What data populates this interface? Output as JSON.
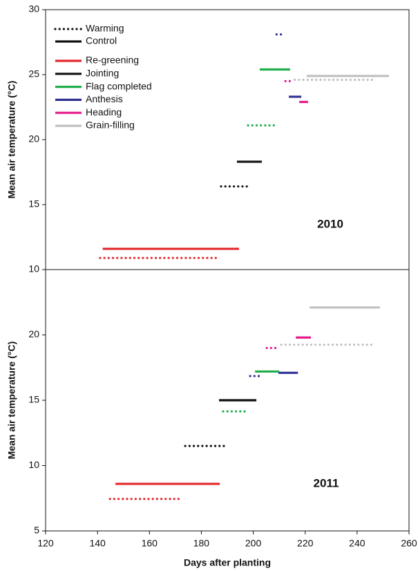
{
  "chart_data": [
    {
      "type": "segment",
      "ylabel": "Mean air temperature (°C)",
      "annotation": "2010",
      "xlim": [
        120,
        260
      ],
      "ylim": [
        10,
        30
      ],
      "yticks": [
        10,
        15,
        20,
        25,
        30
      ],
      "line_styles": [
        {
          "name": "Warming",
          "dash": true
        },
        {
          "name": "Control",
          "dash": false
        }
      ],
      "series": [
        {
          "name": "Re-greening",
          "color": "#e3262b",
          "control": {
            "x": [
              142,
              194.5
            ],
            "y": 11.6
          },
          "warming": {
            "x": [
              141,
              187
            ],
            "y": 10.9
          }
        },
        {
          "name": "Jointing",
          "color": "#111111",
          "control": {
            "x": [
              193.7,
              203.3
            ],
            "y": 18.3
          },
          "warming": {
            "x": [
              187.6,
              198.8
            ],
            "y": 16.4
          }
        },
        {
          "name": "Flag completed",
          "color": "#1fae4b",
          "control": {
            "x": [
              202.5,
              214.2
            ],
            "y": 25.4
          },
          "warming": {
            "x": [
              198,
              209.2
            ],
            "y": 21.1
          }
        },
        {
          "name": "Anthesis",
          "color": "#2e3192",
          "control": {
            "x": [
              213.7,
              218.5
            ],
            "y": 23.3
          },
          "warming": {
            "x": [
              209,
              211.6
            ],
            "y": 28.1
          }
        },
        {
          "name": "Heading",
          "color": "#e6198a",
          "control": {
            "x": [
              217.7,
              221.1
            ],
            "y": 22.9
          },
          "warming": {
            "x": [
              212.4,
              215.3
            ],
            "y": 24.5
          }
        },
        {
          "name": "Grain-filling",
          "color": "#c0c0c0",
          "control": {
            "x": [
              220.6,
              252.3
            ],
            "y": 24.9
          },
          "warming": {
            "x": [
              216,
              246
            ],
            "y": 24.6
          }
        }
      ]
    },
    {
      "type": "segment",
      "ylabel": "Mean air temperature (°C)",
      "xlabel": "Days after planting",
      "annotation": "2011",
      "xlim": [
        120,
        260
      ],
      "xticks": [
        120,
        140,
        160,
        180,
        200,
        220,
        240,
        260
      ],
      "ylim": [
        5,
        25
      ],
      "yticks": [
        5,
        10,
        15,
        20
      ],
      "series": [
        {
          "color": "#e3262b",
          "control": {
            "x": [
              146.9,
              187.1
            ],
            "y": 8.6
          },
          "warming": {
            "x": [
              144.8,
              172.7
            ],
            "y": 7.45
          }
        },
        {
          "color": "#111111",
          "control": {
            "x": [
              186.8,
              201.2
            ],
            "y": 15
          },
          "warming": {
            "x": [
              173.8,
              188.9
            ],
            "y": 11.5
          }
        },
        {
          "color": "#1fae4b",
          "control": {
            "x": [
              200.7,
              210
            ],
            "y": 17.2
          },
          "warming": {
            "x": [
              188.4,
              197.7
            ],
            "y": 14.15
          }
        },
        {
          "color": "#2e3192",
          "control": {
            "x": [
              209.7,
              217.2
            ],
            "y": 17.1
          },
          "warming": {
            "x": [
              198.8,
              203.6
            ],
            "y": 16.85
          }
        },
        {
          "color": "#e6198a",
          "control": {
            "x": [
              216.4,
              222.2
            ],
            "y": 19.8
          },
          "warming": {
            "x": [
              205.2,
              209.7
            ],
            "y": 19
          }
        },
        {
          "color": "#c0c0c0",
          "control": {
            "x": [
              221.7,
              248.8
            ],
            "y": 22.1
          },
          "warming": {
            "x": [
              210.8,
              246.2
            ],
            "y": 19.25
          }
        }
      ]
    }
  ]
}
